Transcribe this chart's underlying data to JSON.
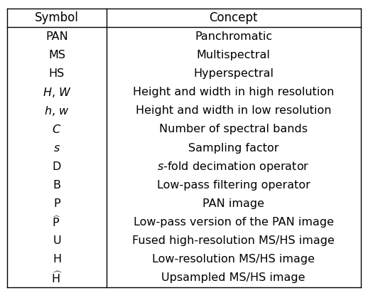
{
  "title_symbol": "Symbol",
  "title_concept": "Concept",
  "rows": [
    [
      "PAN",
      "Panchromatic"
    ],
    [
      "MS",
      "Multispectral"
    ],
    [
      "HS",
      "Hyperspectral"
    ],
    [
      "$H$, $W$",
      "Height and width in high resolution"
    ],
    [
      "$h$, $w$",
      "Height and width in low resolution"
    ],
    [
      "$C$",
      "Number of spectral bands"
    ],
    [
      "$s$",
      "Sampling factor"
    ],
    [
      "D",
      "$s$-fold decimation operator"
    ],
    [
      "B",
      "Low-pass filtering operator"
    ],
    [
      "P",
      "PAN image"
    ],
    [
      "$\\widehat{\\mathrm{P}}$",
      "Low-pass version of the PAN image"
    ],
    [
      "U",
      "Fused high-resolution MS/HS image"
    ],
    [
      "H",
      "Low-resolution MS/HS image"
    ],
    [
      "$\\widehat{\\mathrm{H}}$",
      "Upsampled MS/HS image"
    ]
  ],
  "col_split": 0.28,
  "bg_color": "#ffffff",
  "text_color": "#000000",
  "line_color": "#000000",
  "fontsize": 11.5,
  "header_fontsize": 12
}
